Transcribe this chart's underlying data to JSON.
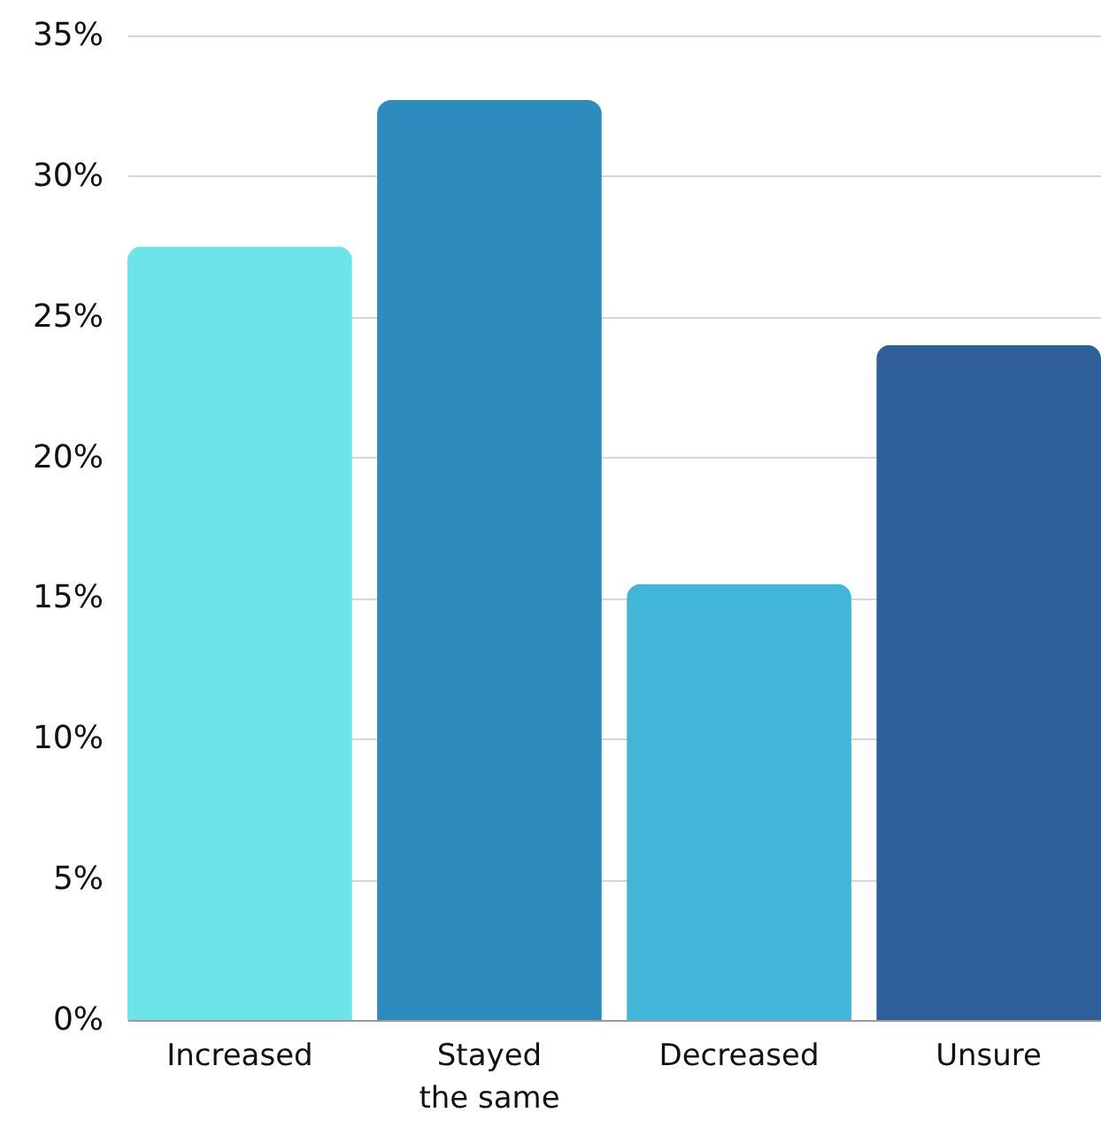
{
  "chart_data": {
    "type": "bar",
    "categories": [
      "Increased",
      "Stayed the same",
      "Decreased",
      "Unsure"
    ],
    "values": [
      27.5,
      32.7,
      15.5,
      24.0
    ],
    "colors": [
      "#6ce4e8",
      "#2e8bbd",
      "#41b6d8",
      "#2e5f98"
    ],
    "ylim": [
      0,
      35
    ],
    "yticks": [
      {
        "value": 0,
        "label": "0%"
      },
      {
        "value": 5,
        "label": "5%"
      },
      {
        "value": 10,
        "label": "10%"
      },
      {
        "value": 15,
        "label": "15%"
      },
      {
        "value": 20,
        "label": "20%"
      },
      {
        "value": 25,
        "label": "25%"
      },
      {
        "value": 30,
        "label": "30%"
      },
      {
        "value": 35,
        "label": "35%"
      }
    ],
    "grid": "y"
  }
}
